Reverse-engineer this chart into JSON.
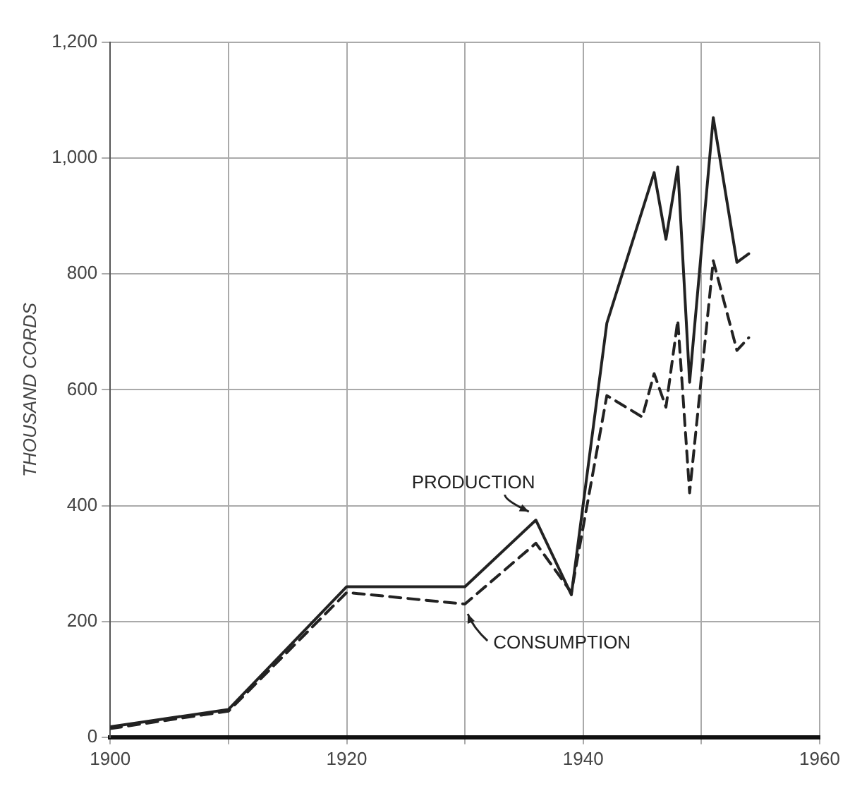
{
  "chart_data": {
    "type": "line",
    "ylabel": "THOUSAND CORDS",
    "xlim": [
      1900,
      1960
    ],
    "ylim": [
      0,
      1200
    ],
    "xticks": [
      1900,
      {
        "value": 1910,
        "label": null
      },
      1920,
      {
        "value": 1930,
        "label": null
      },
      1940,
      {
        "value": 1950,
        "label": null
      },
      1960
    ],
    "yticks": [
      0,
      200,
      400,
      600,
      800,
      {
        "value": 1000,
        "label": "1,000"
      },
      {
        "value": 1200,
        "label": "1,200"
      }
    ],
    "grid": true,
    "legend": false,
    "marker": "none",
    "series": [
      {
        "name": "PRODUCTION",
        "color": "#222222",
        "line_style": "solid",
        "x": [
          1900,
          1910,
          1920,
          1930,
          1936,
          1939,
          1942,
          1946,
          1947,
          1948,
          1949,
          1951,
          1953,
          1954
        ],
        "values": [
          18,
          48,
          260,
          260,
          375,
          246,
          715,
          975,
          860,
          985,
          613,
          1070,
          820,
          835
        ]
      },
      {
        "name": "CONSUMPTION",
        "color": "#222222",
        "line_style": "dashed",
        "x": [
          1900,
          1910,
          1920,
          1930,
          1936,
          1939,
          1942,
          1945,
          1946,
          1947,
          1948,
          1949,
          1951,
          1953,
          1954
        ],
        "values": [
          15,
          45,
          250,
          230,
          335,
          250,
          590,
          553,
          628,
          570,
          720,
          422,
          823,
          668,
          690
        ]
      }
    ]
  }
}
